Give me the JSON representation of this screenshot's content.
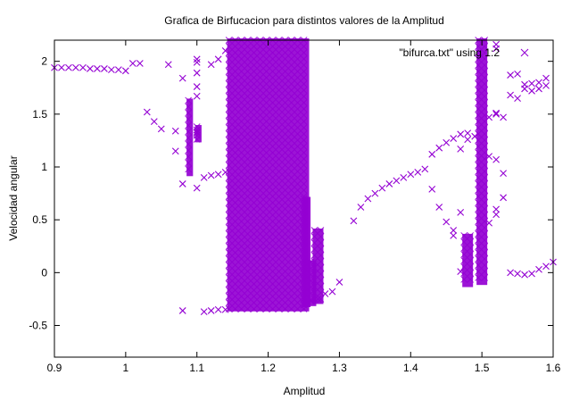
{
  "chart_data": {
    "type": "scatter",
    "title": "Grafica de Birfucacion para distintos valores de la Amplitud",
    "xlabel": "Amplitud",
    "ylabel": "Velocidad angular",
    "xlim": [
      0.9,
      1.6
    ],
    "ylim": [
      -0.8,
      2.2
    ],
    "x_ticks": [
      "0.9",
      "1",
      "1.1",
      "1.2",
      "1.3",
      "1.4",
      "1.5",
      "1.6"
    ],
    "y_ticks": [
      "-0.5",
      "0",
      "0.5",
      "1",
      "1.5",
      "2"
    ],
    "legend_position": "top-right",
    "marker": "x",
    "color": "#9400d3",
    "grid": false,
    "series": [
      {
        "name": "\"bifurca.txt\" using 1:2",
        "points": [
          [
            0.9,
            1.94
          ],
          [
            0.91,
            1.94
          ],
          [
            0.92,
            1.94
          ],
          [
            0.93,
            1.94
          ],
          [
            0.94,
            1.94
          ],
          [
            0.95,
            1.93
          ],
          [
            0.96,
            1.93
          ],
          [
            0.97,
            1.93
          ],
          [
            0.98,
            1.92
          ],
          [
            0.99,
            1.92
          ],
          [
            1.0,
            1.91
          ],
          [
            1.01,
            1.98
          ],
          [
            1.02,
            1.98
          ],
          [
            1.06,
            1.97
          ],
          [
            1.08,
            1.84
          ],
          [
            1.1,
            2.02
          ],
          [
            1.1,
            1.99
          ],
          [
            1.1,
            1.89
          ],
          [
            1.1,
            1.76
          ],
          [
            1.1,
            1.67
          ],
          [
            1.12,
            1.97
          ],
          [
            1.13,
            2.02
          ],
          [
            1.14,
            2.1
          ],
          [
            1.03,
            1.52
          ],
          [
            1.04,
            1.43
          ],
          [
            1.05,
            1.36
          ],
          [
            1.07,
            1.34
          ],
          [
            1.07,
            1.15
          ],
          [
            1.08,
            0.84
          ],
          [
            1.1,
            0.8
          ],
          [
            1.11,
            0.9
          ],
          [
            1.12,
            0.92
          ],
          [
            1.13,
            0.93
          ],
          [
            1.14,
            0.95
          ],
          [
            1.1,
            1.3
          ],
          [
            1.1,
            1.35
          ],
          [
            1.1,
            1.33
          ],
          [
            1.08,
            -0.36
          ],
          [
            1.11,
            -0.37
          ],
          [
            1.12,
            -0.36
          ],
          [
            1.13,
            -0.35
          ],
          [
            1.14,
            -0.35
          ],
          [
            1.26,
            -0.27
          ],
          [
            1.27,
            -0.25
          ],
          [
            1.28,
            -0.2
          ],
          [
            1.29,
            -0.18
          ],
          [
            1.3,
            -0.09
          ],
          [
            1.32,
            0.49
          ],
          [
            1.33,
            0.62
          ],
          [
            1.34,
            0.7
          ],
          [
            1.35,
            0.75
          ],
          [
            1.36,
            0.8
          ],
          [
            1.37,
            0.84
          ],
          [
            1.38,
            0.87
          ],
          [
            1.39,
            0.9
          ],
          [
            1.4,
            0.93
          ],
          [
            1.41,
            0.95
          ],
          [
            1.42,
            0.98
          ],
          [
            1.43,
            1.12
          ],
          [
            1.44,
            1.18
          ],
          [
            1.45,
            1.23
          ],
          [
            1.46,
            1.27
          ],
          [
            1.47,
            1.31
          ],
          [
            1.48,
            1.32
          ],
          [
            1.49,
            1.29
          ],
          [
            1.43,
            0.79
          ],
          [
            1.44,
            0.62
          ],
          [
            1.45,
            0.48
          ],
          [
            1.46,
            0.4
          ],
          [
            1.46,
            0.35
          ],
          [
            1.47,
            0.57
          ],
          [
            1.47,
            0.01
          ],
          [
            1.47,
            1.17
          ],
          [
            1.48,
            1.26
          ],
          [
            1.51,
            1.47
          ],
          [
            1.52,
            1.5
          ],
          [
            1.52,
            1.51
          ],
          [
            1.53,
            1.47
          ],
          [
            1.51,
            0.47
          ],
          [
            1.52,
            0.55
          ],
          [
            1.52,
            0.6
          ],
          [
            1.53,
            0.71
          ],
          [
            1.53,
            0.94
          ],
          [
            1.51,
            1.1
          ],
          [
            1.52,
            1.07
          ],
          [
            1.52,
            2.12
          ],
          [
            1.52,
            2.16
          ],
          [
            1.54,
            1.87
          ],
          [
            1.55,
            1.88
          ],
          [
            1.54,
            1.68
          ],
          [
            1.55,
            1.65
          ],
          [
            1.56,
            1.74
          ],
          [
            1.56,
            1.78
          ],
          [
            1.57,
            1.79
          ],
          [
            1.57,
            1.72
          ],
          [
            1.58,
            1.8
          ],
          [
            1.58,
            1.74
          ],
          [
            1.59,
            1.84
          ],
          [
            1.59,
            1.77
          ],
          [
            1.54,
            0.0
          ],
          [
            1.55,
            -0.01
          ],
          [
            1.56,
            -0.02
          ],
          [
            1.57,
            -0.01
          ],
          [
            1.58,
            0.03
          ],
          [
            1.59,
            0.06
          ],
          [
            1.6,
            0.1
          ]
        ],
        "bands": [
          {
            "x": [
              1.145,
              1.255
            ],
            "y": [
              -0.35,
              2.2
            ]
          },
          {
            "x": [
              1.25,
              1.257
            ],
            "y": [
              -0.31,
              0.7
            ]
          },
          {
            "x": [
              1.26,
              1.265
            ],
            "y": [
              -0.3,
              0.1
            ]
          },
          {
            "x": [
              1.265,
              1.275
            ],
            "y": [
              -0.28,
              0.4
            ]
          },
          {
            "x": [
              1.475,
              1.485
            ],
            "y": [
              -0.12,
              0.35
            ]
          },
          {
            "x": [
              1.495,
              1.505
            ],
            "y": [
              -0.1,
              2.2
            ]
          },
          {
            "x": [
              1.088,
              1.092
            ],
            "y": [
              0.93,
              1.63
            ]
          },
          {
            "x": [
              1.1,
              1.104
            ],
            "y": [
              1.25,
              1.38
            ]
          }
        ]
      }
    ]
  }
}
